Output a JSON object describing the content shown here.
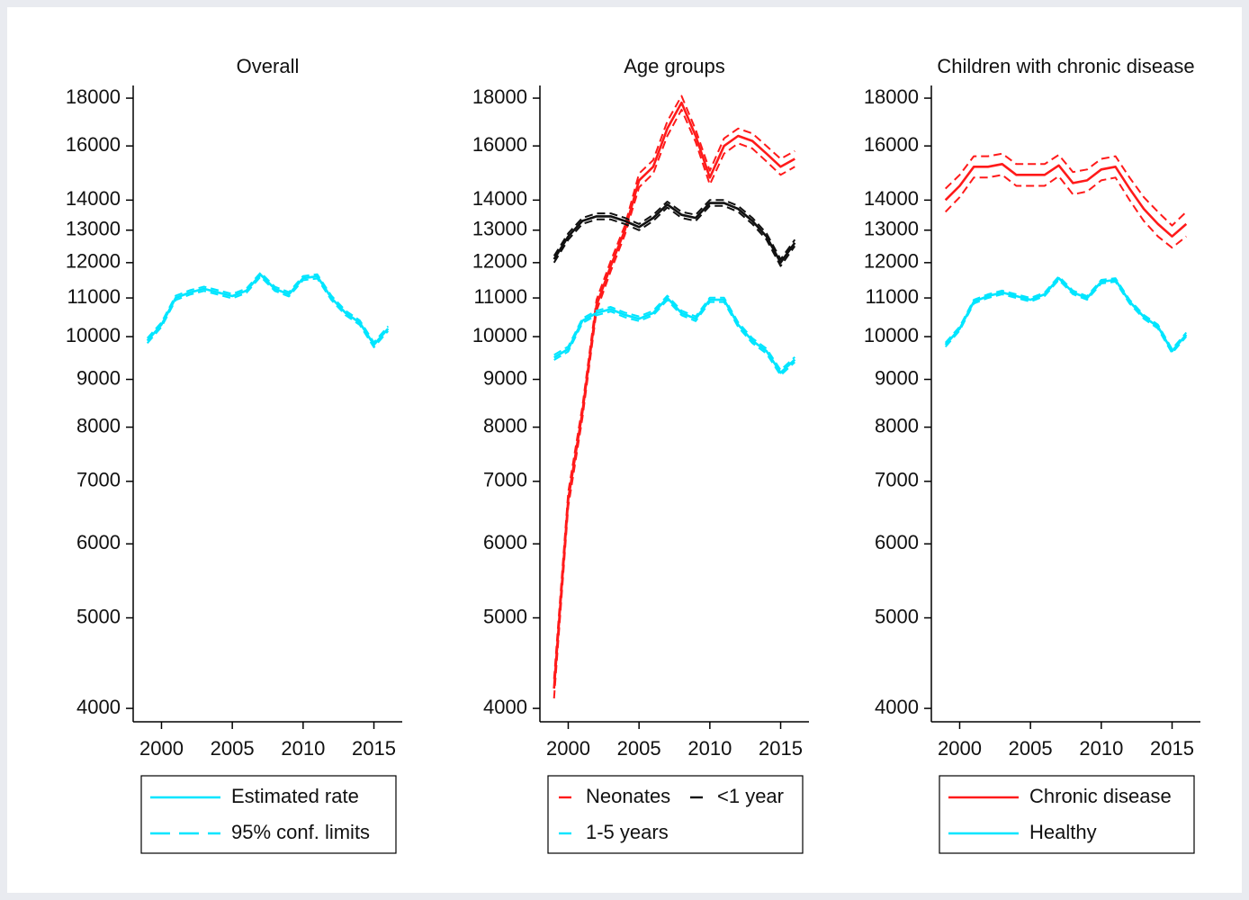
{
  "chart_data": [
    {
      "type": "line",
      "title": "Overall",
      "log_y": true,
      "x": [
        1999,
        2000,
        2001,
        2002,
        2003,
        2004,
        2005,
        2006,
        2007,
        2008,
        2009,
        2010,
        2011,
        2012,
        2013,
        2014,
        2015,
        2016
      ],
      "xlim": [
        1998,
        2017
      ],
      "xticks": [
        2000,
        2005,
        2010,
        2015
      ],
      "ylim": [
        3870,
        18570
      ],
      "yticks": [
        4000,
        5000,
        6000,
        7000,
        8000,
        9000,
        10000,
        11000,
        12000,
        13000,
        14000,
        16000,
        18000
      ],
      "series": [
        {
          "name": "Estimated rate",
          "color": "#00e5ff",
          "values": [
            9900,
            10300,
            11000,
            11150,
            11250,
            11150,
            11050,
            11200,
            11650,
            11250,
            11100,
            11550,
            11600,
            11000,
            10600,
            10350,
            9800,
            10200
          ]
        },
        {
          "name": "95% conf. limits",
          "color": "#00e5ff",
          "legend_dash": true,
          "lower": [
            9840,
            10240,
            10940,
            11090,
            11190,
            11090,
            10990,
            11140,
            11590,
            11190,
            11040,
            11490,
            11540,
            10940,
            10540,
            10290,
            9740,
            10140
          ],
          "upper": [
            9960,
            10360,
            11060,
            11210,
            11310,
            11210,
            11110,
            11260,
            11710,
            11310,
            11160,
            11610,
            11660,
            11060,
            10660,
            10410,
            9860,
            10260
          ]
        }
      ]
    },
    {
      "type": "line",
      "title": "Age groups",
      "log_y": true,
      "x": [
        1999,
        2000,
        2001,
        2002,
        2003,
        2004,
        2005,
        2006,
        2007,
        2008,
        2009,
        2010,
        2011,
        2012,
        2013,
        2014,
        2015,
        2016
      ],
      "xlim": [
        1998,
        2017
      ],
      "xticks": [
        2000,
        2005,
        2010,
        2015
      ],
      "ylim": [
        3870,
        18570
      ],
      "yticks": [
        4000,
        5000,
        6000,
        7000,
        8000,
        9000,
        10000,
        11000,
        12000,
        13000,
        14000,
        16000,
        18000
      ],
      "series": [
        {
          "name": "Neonates",
          "color": "#ff1a1a",
          "legend_dash": true,
          "values": [
            4200,
            6700,
            8300,
            10800,
            11900,
            13000,
            14700,
            15200,
            16700,
            17800,
            16400,
            14800,
            16000,
            16400,
            16200,
            15700,
            15200,
            15500
          ],
          "lower": [
            4100,
            6580,
            8180,
            10650,
            11750,
            12850,
            14450,
            14950,
            16400,
            17500,
            16150,
            14550,
            15700,
            16100,
            15900,
            15400,
            14900,
            15200
          ],
          "upper": [
            4300,
            6820,
            8420,
            10950,
            12050,
            13150,
            14950,
            15450,
            17000,
            18100,
            16650,
            15050,
            16300,
            16700,
            16500,
            16000,
            15500,
            15800
          ]
        },
        {
          "name": "<1 year",
          "color": "#111111",
          "legend_dash": true,
          "values": [
            12100,
            12800,
            13300,
            13450,
            13450,
            13300,
            13100,
            13400,
            13850,
            13500,
            13400,
            13900,
            13900,
            13700,
            13300,
            12800,
            12000,
            12600
          ],
          "lower": [
            12000,
            12700,
            13200,
            13350,
            13350,
            13200,
            13000,
            13300,
            13750,
            13400,
            13300,
            13800,
            13800,
            13600,
            13200,
            12700,
            11900,
            12500
          ],
          "upper": [
            12200,
            12900,
            13400,
            13550,
            13550,
            13400,
            13200,
            13500,
            13950,
            13600,
            13500,
            14000,
            14000,
            13800,
            13400,
            12900,
            12100,
            12700
          ]
        },
        {
          "name": "1-5 years",
          "color": "#00e5ff",
          "legend_dash": true,
          "values": [
            9500,
            9700,
            10400,
            10600,
            10700,
            10550,
            10450,
            10600,
            11000,
            10600,
            10450,
            10950,
            10950,
            10300,
            9900,
            9650,
            9150,
            9450
          ],
          "lower": [
            9440,
            9640,
            10340,
            10540,
            10640,
            10490,
            10390,
            10540,
            10940,
            10540,
            10390,
            10890,
            10890,
            10240,
            9840,
            9590,
            9090,
            9390
          ],
          "upper": [
            9560,
            9760,
            10460,
            10660,
            10760,
            10610,
            10510,
            10660,
            11060,
            10660,
            10510,
            11010,
            11010,
            10360,
            9960,
            9710,
            9210,
            9510
          ]
        }
      ]
    },
    {
      "type": "line",
      "title": "Children with chronic disease",
      "log_y": true,
      "x": [
        1999,
        2000,
        2001,
        2002,
        2003,
        2004,
        2005,
        2006,
        2007,
        2008,
        2009,
        2010,
        2011,
        2012,
        2013,
        2014,
        2015,
        2016
      ],
      "xlim": [
        1998,
        2017
      ],
      "xticks": [
        2000,
        2005,
        2010,
        2015
      ],
      "ylim": [
        3870,
        18570
      ],
      "yticks": [
        4000,
        5000,
        6000,
        7000,
        8000,
        9000,
        10000,
        11000,
        12000,
        13000,
        14000,
        16000,
        18000
      ],
      "series": [
        {
          "name": "Chronic disease",
          "color": "#ff1a1a",
          "values": [
            14000,
            14500,
            15200,
            15200,
            15300,
            14900,
            14900,
            14900,
            15250,
            14600,
            14700,
            15100,
            15200,
            14400,
            13700,
            13200,
            12800,
            13200
          ],
          "lower": [
            13600,
            14100,
            14800,
            14800,
            14900,
            14500,
            14500,
            14500,
            14850,
            14200,
            14300,
            14700,
            14800,
            14000,
            13300,
            12800,
            12450,
            12800
          ],
          "upper": [
            14400,
            14900,
            15600,
            15600,
            15700,
            15300,
            15300,
            15300,
            15650,
            15000,
            15100,
            15500,
            15600,
            14800,
            14100,
            13600,
            13150,
            13600
          ]
        },
        {
          "name": "Healthy",
          "color": "#00e5ff",
          "values": [
            9800,
            10200,
            10900,
            11050,
            11150,
            11050,
            10950,
            11100,
            11550,
            11150,
            11000,
            11450,
            11500,
            10900,
            10500,
            10250,
            9650,
            10050
          ],
          "lower": [
            9750,
            10150,
            10850,
            11000,
            11100,
            11000,
            10900,
            11050,
            11500,
            11100,
            10950,
            11400,
            11450,
            10850,
            10450,
            10200,
            9600,
            10000
          ],
          "upper": [
            9850,
            10250,
            10950,
            11100,
            11200,
            11100,
            11000,
            11150,
            11600,
            11200,
            11050,
            11500,
            11550,
            10950,
            10550,
            10300,
            9700,
            10100
          ]
        }
      ]
    }
  ]
}
